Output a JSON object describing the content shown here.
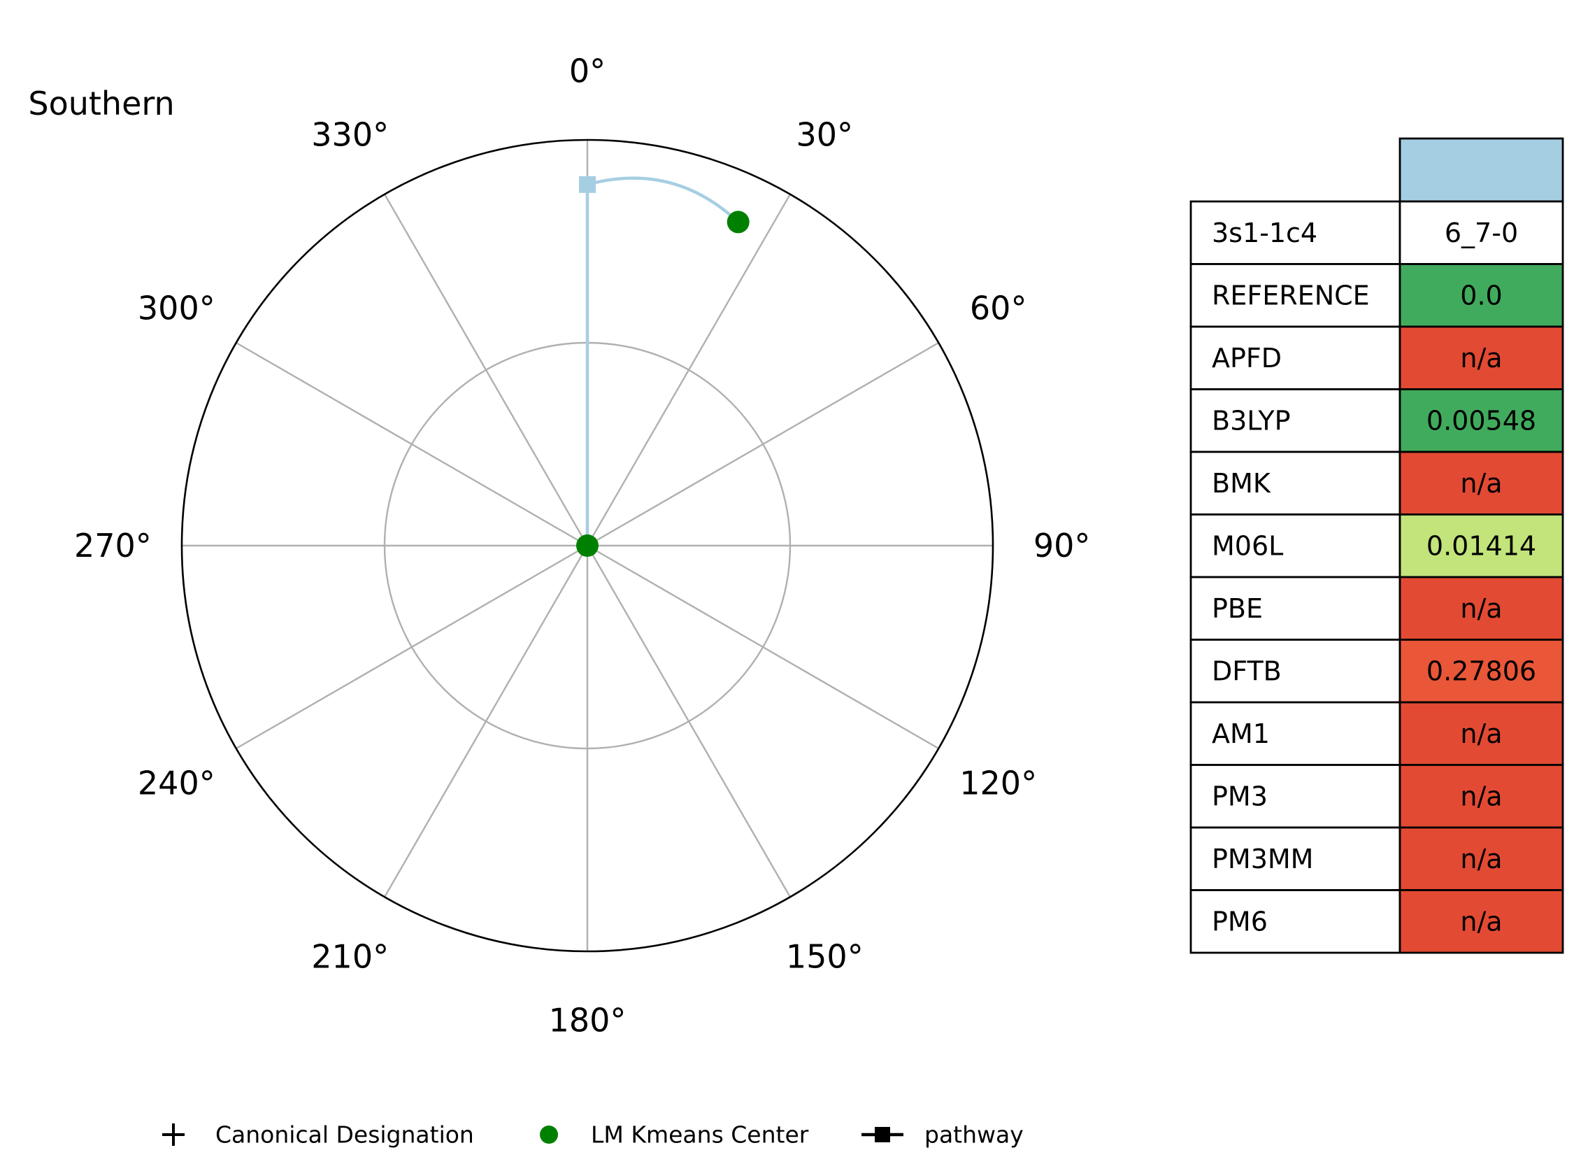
{
  "chart_data": {
    "type": "polar",
    "title": "Southern",
    "theta_direction": "clockwise",
    "theta_zero": "top",
    "theta_ticks": [
      0,
      30,
      60,
      90,
      120,
      150,
      180,
      210,
      240,
      270,
      300,
      330
    ],
    "theta_tick_labels": [
      "0°",
      "30°",
      "60°",
      "90°",
      "120°",
      "150°",
      "180°",
      "210°",
      "240°",
      "270°",
      "300°",
      "330°"
    ],
    "r_ticks": [
      0.5,
      1.0
    ],
    "rlim": [
      0,
      1
    ],
    "grid": true,
    "colors": {
      "pathway": "#a6cee3",
      "kmeans": "#008000",
      "grid": "#b0b0b0",
      "frame": "#000000"
    },
    "series": [
      {
        "name": "LM Kmeans Center",
        "kind": "scatter",
        "points": [
          {
            "theta": 25,
            "r": 0.88
          },
          {
            "theta": 0,
            "r": 0.0
          }
        ]
      },
      {
        "name": "pathway",
        "kind": "line",
        "points": [
          {
            "theta": 25,
            "r": 0.88
          },
          {
            "theta": 0,
            "r": 0.89
          },
          {
            "theta": 0,
            "r": 0.0
          }
        ]
      }
    ],
    "legend": {
      "placement": "bottom",
      "entries": [
        {
          "label": "Canonical Designation",
          "marker": "plus"
        },
        {
          "label": "LM Kmeans Center",
          "marker": "circle"
        },
        {
          "label": "pathway",
          "marker": "line-square"
        }
      ]
    },
    "table": {
      "header_color": "#a6cee3",
      "rows": [
        {
          "label": "3s1-1c4",
          "value": "6_7-0",
          "color": "#ffffff"
        },
        {
          "label": "REFERENCE",
          "value": "0.0",
          "color": "#41ab5d"
        },
        {
          "label": "APFD",
          "value": "n/a",
          "color": "#e34a33"
        },
        {
          "label": "B3LYP",
          "value": "0.00548",
          "color": "#41ab5d"
        },
        {
          "label": "BMK",
          "value": "n/a",
          "color": "#e34a33"
        },
        {
          "label": "M06L",
          "value": "0.01414",
          "color": "#c2e47a"
        },
        {
          "label": "PBE",
          "value": "n/a",
          "color": "#e34a33"
        },
        {
          "label": "DFTB",
          "value": "0.27806",
          "color": "#e95638"
        },
        {
          "label": "AM1",
          "value": "n/a",
          "color": "#e34a33"
        },
        {
          "label": "PM3",
          "value": "n/a",
          "color": "#e34a33"
        },
        {
          "label": "PM3MM",
          "value": "n/a",
          "color": "#e34a33"
        },
        {
          "label": "PM6",
          "value": "n/a",
          "color": "#e34a33"
        }
      ]
    }
  }
}
